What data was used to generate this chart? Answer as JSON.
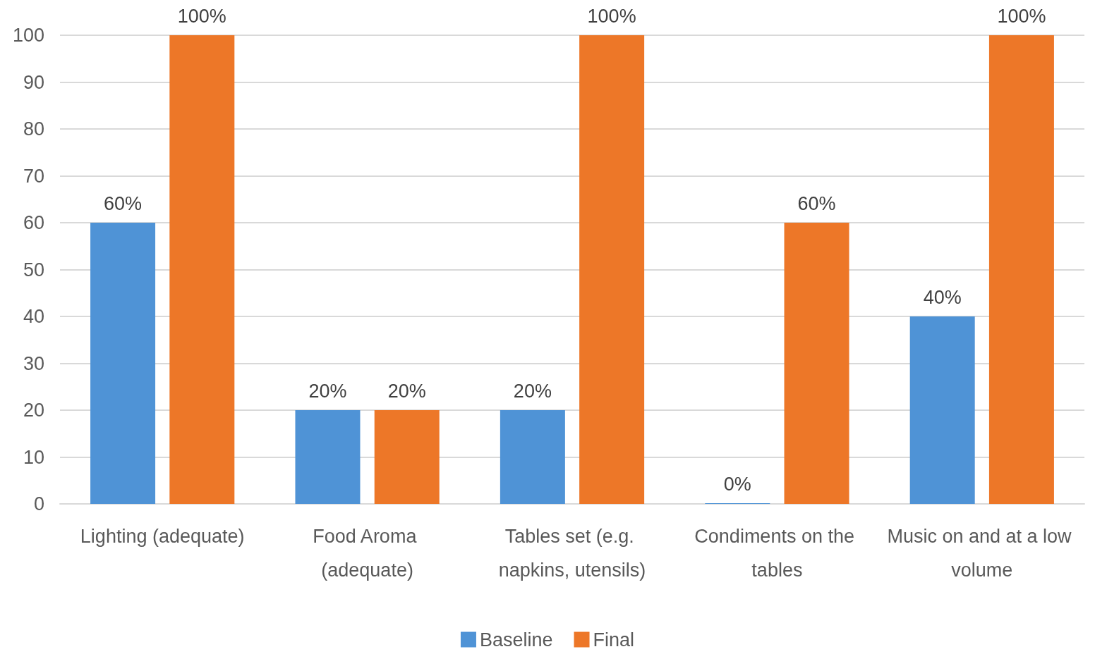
{
  "chart_data": {
    "type": "bar",
    "categories": [
      "Lighting (adequate)",
      "Food Aroma (adequate)",
      "Tables set (e.g. napkins, utensils)",
      "Condiments on the tables",
      "Music on and at a low volume"
    ],
    "series": [
      {
        "name": "Baseline",
        "color": "#4f93d6",
        "values": [
          60,
          20,
          20,
          0,
          40
        ],
        "value_labels": [
          "60%",
          "20%",
          "20%",
          "0%",
          "40%"
        ]
      },
      {
        "name": "Final",
        "color": "#ed7728",
        "values": [
          100,
          20,
          100,
          60,
          100
        ],
        "value_labels": [
          "100%",
          "20%",
          "100%",
          "60%",
          "100%"
        ]
      }
    ],
    "ylim": [
      0,
      100
    ],
    "yticks": [
      0,
      10,
      20,
      30,
      40,
      50,
      60,
      70,
      80,
      90,
      100
    ],
    "grid": "y",
    "legend": "bottom"
  }
}
